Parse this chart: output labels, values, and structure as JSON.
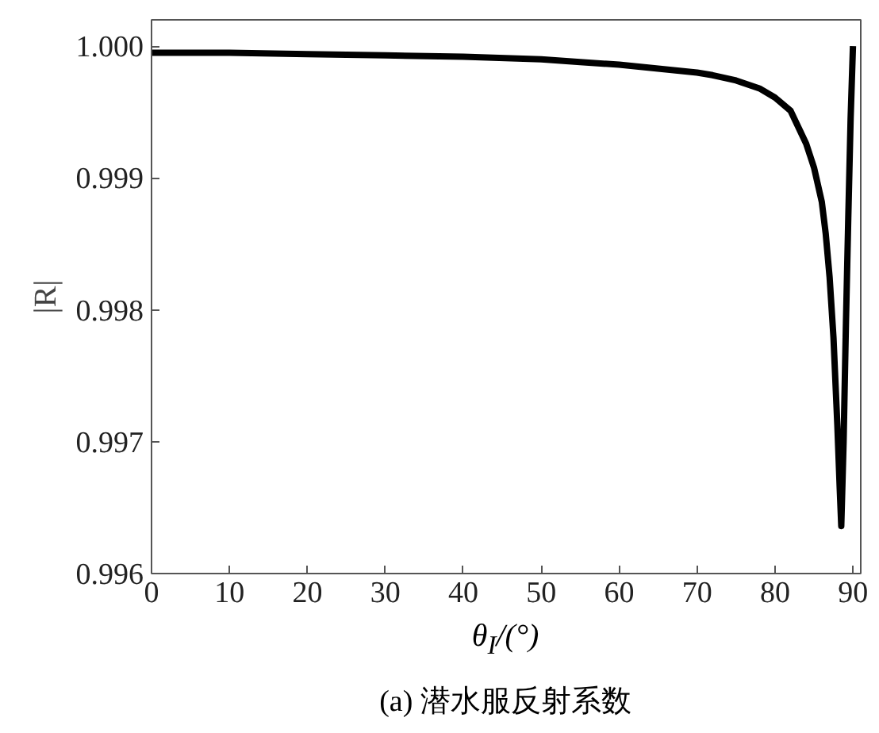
{
  "chart_data": {
    "type": "line",
    "title": "(a) 潜水服反射系数",
    "xlabel": "θ$_{I}$/(°)",
    "ylabel": "|R|",
    "x": [
      0,
      10,
      20,
      30,
      40,
      50,
      55,
      60,
      65,
      70,
      72,
      75,
      78,
      80,
      82,
      84,
      85,
      86,
      86.5,
      87,
      87.5,
      88,
      88.3,
      88.5,
      88.8,
      89.1,
      89.4,
      89.7,
      90
    ],
    "series": [
      {
        "color": "#000000",
        "values": [
          0.99995,
          0.99995,
          0.99994,
          0.99993,
          0.99992,
          0.9999,
          0.99988,
          0.99986,
          0.99983,
          0.9998,
          0.99978,
          0.99974,
          0.99968,
          0.99961,
          0.99951,
          0.99926,
          0.99908,
          0.99882,
          0.99858,
          0.99825,
          0.99779,
          0.99712,
          0.99665,
          0.99636,
          0.997,
          0.9979,
          0.9987,
          0.99945,
          1.0
        ]
      }
    ],
    "xlim": [
      0,
      91
    ],
    "ylim": [
      0.996,
      1.0002
    ],
    "xticks": [
      0,
      10,
      20,
      30,
      40,
      50,
      60,
      70,
      80,
      90
    ],
    "yticks": [
      {
        "value": 0.996,
        "label": "0.996"
      },
      {
        "value": 0.997,
        "label": "0.997"
      },
      {
        "value": 0.998,
        "label": "0.998"
      },
      {
        "value": 0.999,
        "label": "0.999"
      },
      {
        "value": 1.0,
        "label": "1.000"
      }
    ],
    "grid": false,
    "line_style": "solid"
  }
}
